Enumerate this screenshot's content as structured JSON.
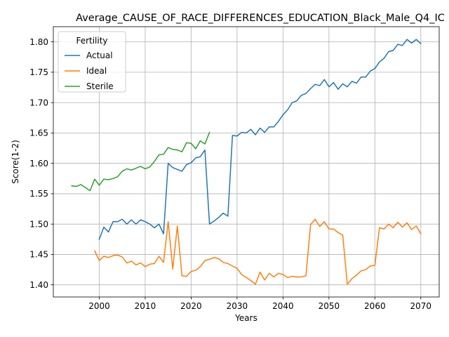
{
  "chart_data": {
    "type": "line",
    "title": "Average_CAUSE_OF_RACE_DIFFERENCES_EDUCATION_Black_Male_Q4_IC",
    "xlabel": "Years",
    "ylabel": "Score(1-2)",
    "xlim": [
      1990,
      2074
    ],
    "ylim": [
      1.38,
      1.825
    ],
    "xticks": [
      2000,
      2010,
      2020,
      2030,
      2040,
      2050,
      2060,
      2070
    ],
    "yticks": [
      1.4,
      1.45,
      1.5,
      1.55,
      1.6,
      1.65,
      1.7,
      1.75,
      1.8
    ],
    "ytick_labels": [
      "1.40",
      "1.45",
      "1.50",
      "1.55",
      "1.60",
      "1.65",
      "1.70",
      "1.75",
      "1.80"
    ],
    "grid": true,
    "legend": {
      "title": "Fertility",
      "position": "top-left"
    },
    "series": [
      {
        "name": "Actual",
        "color": "#1f77b4",
        "x": [
          2000,
          2001,
          2002,
          2003,
          2004,
          2005,
          2006,
          2007,
          2008,
          2009,
          2010,
          2011,
          2012,
          2013,
          2014,
          2015,
          2016,
          2017,
          2018,
          2019,
          2020,
          2021,
          2022,
          2023,
          2024,
          2025,
          2026,
          2027,
          2028,
          2029,
          2030,
          2031,
          2032,
          2033,
          2034,
          2035,
          2036,
          2037,
          2038,
          2039,
          2040,
          2041,
          2042,
          2043,
          2044,
          2045,
          2046,
          2047,
          2048,
          2049,
          2050,
          2051,
          2052,
          2053,
          2054,
          2055,
          2056,
          2057,
          2058,
          2059,
          2060,
          2061,
          2062,
          2063,
          2064,
          2065,
          2066,
          2067,
          2068,
          2069,
          2070
        ],
        "values": [
          1.475,
          1.495,
          1.487,
          1.504,
          1.504,
          1.508,
          1.5,
          1.507,
          1.5,
          1.507,
          1.504,
          1.5,
          1.494,
          1.5,
          1.484,
          1.6,
          1.593,
          1.59,
          1.587,
          1.598,
          1.601,
          1.609,
          1.611,
          1.622,
          1.5,
          1.505,
          1.511,
          1.518,
          1.513,
          1.646,
          1.645,
          1.651,
          1.65,
          1.656,
          1.647,
          1.658,
          1.651,
          1.66,
          1.66,
          1.669,
          1.68,
          1.688,
          1.7,
          1.703,
          1.712,
          1.715,
          1.723,
          1.73,
          1.728,
          1.738,
          1.726,
          1.733,
          1.722,
          1.731,
          1.726,
          1.735,
          1.732,
          1.742,
          1.742,
          1.752,
          1.756,
          1.767,
          1.773,
          1.784,
          1.786,
          1.796,
          1.794,
          1.804,
          1.798,
          1.804,
          1.797
        ]
      },
      {
        "name": "Ideal",
        "color": "#ff7f0e",
        "x": [
          1999,
          2000,
          2001,
          2002,
          2003,
          2004,
          2005,
          2006,
          2007,
          2008,
          2009,
          2010,
          2011,
          2012,
          2013,
          2014,
          2015,
          2016,
          2017,
          2018,
          2019,
          2020,
          2021,
          2022,
          2023,
          2024,
          2025,
          2026,
          2027,
          2028,
          2029,
          2030,
          2031,
          2032,
          2033,
          2034,
          2035,
          2036,
          2037,
          2038,
          2039,
          2040,
          2041,
          2042,
          2043,
          2044,
          2045,
          2046,
          2047,
          2048,
          2049,
          2050,
          2051,
          2052,
          2053,
          2054,
          2055,
          2056,
          2057,
          2058,
          2059,
          2060,
          2061,
          2062,
          2063,
          2064,
          2065,
          2066,
          2067,
          2068,
          2069,
          2070
        ],
        "values": [
          1.456,
          1.44,
          1.447,
          1.445,
          1.448,
          1.449,
          1.446,
          1.436,
          1.439,
          1.433,
          1.436,
          1.43,
          1.434,
          1.435,
          1.447,
          1.437,
          1.504,
          1.426,
          1.497,
          1.415,
          1.414,
          1.422,
          1.424,
          1.43,
          1.44,
          1.442,
          1.445,
          1.443,
          1.437,
          1.435,
          1.431,
          1.427,
          1.417,
          1.412,
          1.407,
          1.401,
          1.421,
          1.408,
          1.419,
          1.413,
          1.419,
          1.417,
          1.412,
          1.414,
          1.413,
          1.413,
          1.415,
          1.499,
          1.508,
          1.496,
          1.504,
          1.492,
          1.492,
          1.486,
          1.482,
          1.401,
          1.41,
          1.416,
          1.423,
          1.425,
          1.431,
          1.432,
          1.494,
          1.492,
          1.5,
          1.494,
          1.503,
          1.495,
          1.502,
          1.491,
          1.497,
          1.484
        ]
      },
      {
        "name": "Sterile",
        "color": "#2ca02c",
        "x": [
          1994,
          1995,
          1996,
          1997,
          1998,
          1999,
          2000,
          2001,
          2002,
          2003,
          2004,
          2005,
          2006,
          2007,
          2008,
          2009,
          2010,
          2011,
          2012,
          2013,
          2014,
          2015,
          2016,
          2017,
          2018,
          2019,
          2020,
          2021,
          2022,
          2023,
          2024
        ],
        "values": [
          1.563,
          1.562,
          1.565,
          1.56,
          1.555,
          1.574,
          1.564,
          1.574,
          1.573,
          1.575,
          1.578,
          1.587,
          1.591,
          1.589,
          1.592,
          1.595,
          1.591,
          1.594,
          1.603,
          1.614,
          1.615,
          1.626,
          1.623,
          1.622,
          1.619,
          1.634,
          1.633,
          1.624,
          1.637,
          1.632,
          1.651
        ]
      }
    ]
  }
}
